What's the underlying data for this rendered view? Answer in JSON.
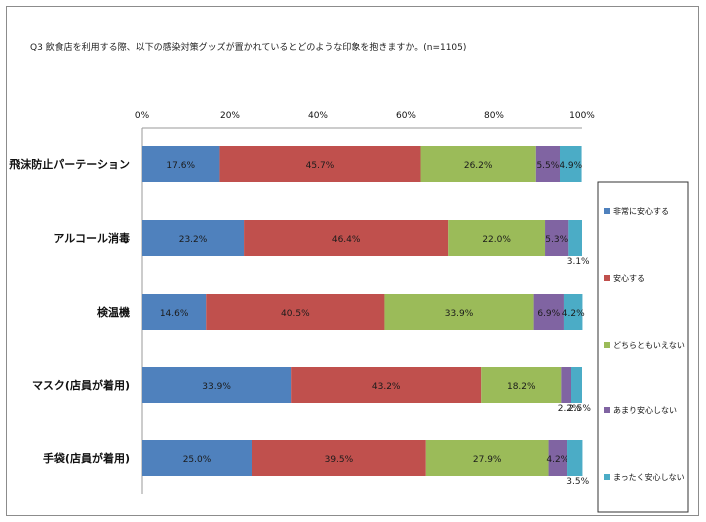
{
  "title": "Q3 飲食店を利用する際、以下の感染対策グッズが置かれているとどのような印象を抱きますか。(n=1105)",
  "colors": {
    "series": [
      "#4f81bd",
      "#c0504d",
      "#9bbb59",
      "#8064a2",
      "#4bacc6"
    ]
  },
  "chart_data": {
    "type": "bar",
    "orientation": "horizontal",
    "stacked": true,
    "percent": true,
    "title": "Q3 飲食店を利用する際、以下の感染対策グッズが置かれているとどのような印象を抱きますか。(n=1105)",
    "xlim": [
      0,
      100
    ],
    "xticks": [
      "0%",
      "20%",
      "40%",
      "60%",
      "80%",
      "100%"
    ],
    "categories": [
      "飛沫防止パーテーション",
      "アルコール消毒",
      "検温機",
      "マスク(店員が着用)",
      "手袋(店員が着用)"
    ],
    "series": [
      {
        "name": "非常に安心する",
        "values": [
          17.6,
          23.2,
          14.6,
          33.9,
          25.0
        ]
      },
      {
        "name": "安心する",
        "values": [
          45.7,
          46.4,
          40.5,
          43.2,
          39.5
        ]
      },
      {
        "name": "どちらともいえない",
        "values": [
          26.2,
          22.0,
          33.9,
          18.2,
          27.9
        ]
      },
      {
        "name": "あまり安心しない",
        "values": [
          5.5,
          5.3,
          6.9,
          2.2,
          4.2
        ]
      },
      {
        "name": "まったく安心しない",
        "values": [
          4.9,
          3.1,
          4.2,
          2.5,
          3.5
        ]
      }
    ],
    "legend_position": "right",
    "grid": false
  }
}
